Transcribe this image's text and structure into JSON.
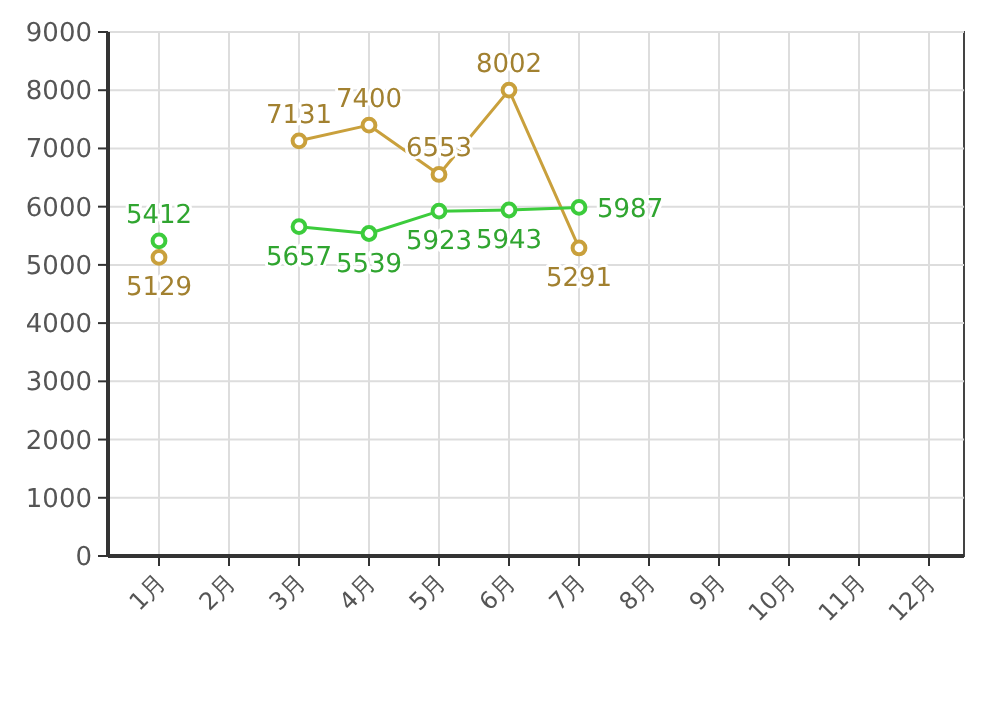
{
  "chart_data": {
    "type": "line",
    "categories": [
      "1月",
      "2月",
      "3月",
      "4月",
      "5月",
      "6月",
      "7月",
      "8月",
      "9月",
      "10月",
      "11月",
      "12月"
    ],
    "series": [
      {
        "color": "#c9a03c",
        "values": [
          5129,
          null,
          7131,
          7400,
          6553,
          8002,
          5291,
          null,
          null,
          null,
          null,
          null
        ]
      },
      {
        "color": "#3ccc3c",
        "values": [
          5412,
          null,
          5657,
          5539,
          5923,
          5943,
          5987,
          null,
          null,
          null,
          null,
          null
        ]
      }
    ],
    "ylim": [
      0,
      9000
    ],
    "yticks": [
      0,
      1000,
      2000,
      3000,
      4000,
      5000,
      6000,
      7000,
      8000,
      9000
    ],
    "grid": true,
    "marker": "circle",
    "line_style": "solid",
    "data_labels": true
  }
}
